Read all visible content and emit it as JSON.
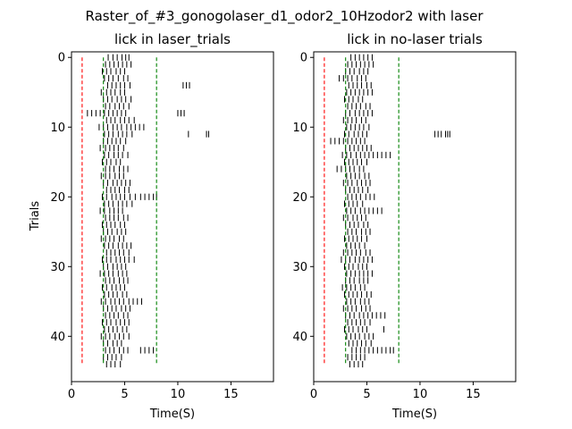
{
  "figure": {
    "suptitle": "Raster_of_#3_gonogolaser_d1_odor2_10Hzodor2 with laser"
  },
  "chart_data": [
    {
      "type": "scatter",
      "marker": "vertical-tick",
      "title": "lick in laser_trials",
      "xlabel": "Time(S)",
      "ylabel": "Trials",
      "xlim": [
        0,
        19
      ],
      "ylim": [
        46.5,
        -0.8
      ],
      "x_ticks": [
        0,
        5,
        10,
        15
      ],
      "y_ticks": [
        0,
        10,
        20,
        30,
        40
      ],
      "ylabel_shown": true,
      "grid": false,
      "colors": {
        "ticks": "#000000",
        "odor_line": "#ff0000",
        "window_line": "#008000"
      },
      "reference_lines": [
        {
          "x": 1.0,
          "color": "#ff0000",
          "style": "dashed",
          "y_range": [
            0,
            44
          ]
        },
        {
          "x": 3.0,
          "color": "#008000",
          "style": "dashed",
          "y_range": [
            0,
            44
          ]
        },
        {
          "x": 8.0,
          "color": "#008000",
          "style": "dashed",
          "y_range": [
            0,
            44
          ]
        }
      ],
      "trials": [
        [
          3.45,
          3.9,
          4.3,
          4.75,
          5.1,
          5.4
        ],
        [
          3.2,
          3.6,
          4.0,
          4.4,
          4.8,
          5.2,
          5.6
        ],
        [
          2.9,
          3.3,
          3.7,
          4.2,
          4.6,
          5.0
        ],
        [
          3.1,
          3.5,
          3.9,
          4.4,
          4.9,
          5.3
        ],
        [
          3.4,
          3.8,
          4.2,
          4.6,
          5.0,
          5.5,
          10.5,
          10.8,
          11.1
        ],
        [
          2.8,
          3.3,
          3.7,
          4.1,
          4.6,
          5.0
        ],
        [
          3.0,
          3.4,
          3.8,
          4.3,
          4.7,
          5.1,
          5.6
        ],
        [
          3.2,
          3.6,
          4.1,
          4.5,
          4.9,
          5.4
        ],
        [
          1.5,
          1.9,
          2.3,
          2.7,
          3.1,
          3.5,
          3.9,
          4.3,
          4.7,
          5.1,
          10.0,
          10.3,
          10.6
        ],
        [
          3.3,
          3.7,
          4.1,
          4.6,
          5.0,
          5.4,
          5.9
        ],
        [
          2.6,
          3.0,
          3.4,
          3.9,
          4.3,
          4.7,
          5.2,
          5.6,
          6.0,
          6.4,
          6.8
        ],
        [
          3.1,
          3.5,
          3.9,
          4.4,
          4.8,
          5.2,
          5.7,
          11.0,
          12.7,
          12.9
        ],
        [
          3.0,
          3.4,
          3.8,
          4.2,
          4.6,
          5.1
        ],
        [
          2.7,
          3.2,
          3.6,
          4.0,
          4.4,
          4.9
        ],
        [
          3.1,
          3.5,
          4.0,
          4.4,
          4.8,
          5.3
        ],
        [
          2.9,
          3.3,
          3.7,
          4.2,
          4.6
        ],
        [
          3.2,
          3.6,
          4.0,
          4.5,
          4.9,
          5.3
        ],
        [
          2.8,
          3.2,
          3.6,
          4.1,
          4.5,
          4.9
        ],
        [
          3.0,
          3.4,
          3.9,
          4.3,
          4.7,
          5.1,
          5.5
        ],
        [
          3.3,
          3.7,
          4.1,
          4.5,
          5.0,
          5.4
        ],
        [
          2.9,
          3.3,
          3.8,
          4.2,
          4.6,
          5.0,
          5.5,
          6.0,
          6.5,
          6.9,
          7.3,
          7.7,
          8.0
        ],
        [
          3.1,
          3.5,
          3.9,
          4.4,
          4.8,
          5.2,
          5.7
        ],
        [
          2.7,
          3.1,
          3.6,
          4.0,
          4.4,
          4.8
        ],
        [
          3.2,
          3.6,
          4.0,
          4.4,
          4.9,
          5.3
        ],
        [
          2.9,
          3.3,
          3.7,
          4.1,
          4.6,
          5.0
        ],
        [
          3.0,
          3.4,
          3.8,
          4.3,
          4.7,
          5.1
        ],
        [
          2.8,
          3.2,
          3.6,
          4.0,
          4.5,
          4.9
        ],
        [
          3.1,
          3.5,
          3.9,
          4.4,
          4.8,
          5.2,
          5.6
        ],
        [
          3.3,
          3.7,
          4.1,
          4.5,
          4.9,
          5.4
        ],
        [
          2.9,
          3.3,
          3.7,
          4.2,
          4.6,
          5.0,
          5.4,
          5.9
        ],
        [
          3.0,
          3.4,
          3.9,
          4.3,
          4.7,
          5.1
        ],
        [
          2.7,
          3.1,
          3.5,
          3.9,
          4.4,
          4.8,
          5.2
        ],
        [
          3.2,
          3.6,
          4.0,
          4.5,
          4.9,
          5.3
        ],
        [
          2.9,
          3.3,
          3.8,
          4.2,
          4.6,
          5.0
        ],
        [
          3.1,
          3.5,
          3.9,
          4.3,
          4.8,
          5.2
        ],
        [
          2.8,
          3.2,
          3.7,
          4.1,
          4.5,
          4.9,
          5.4,
          5.8,
          6.2,
          6.6
        ],
        [
          3.0,
          3.4,
          3.8,
          4.2,
          4.7,
          5.1,
          5.5
        ],
        [
          3.2,
          3.6,
          4.0,
          4.4,
          4.9,
          5.3
        ],
        [
          2.9,
          3.3,
          3.7,
          4.2,
          4.6,
          5.0,
          5.4
        ],
        [
          3.1,
          3.5,
          3.9,
          4.3,
          4.8,
          5.2
        ],
        [
          2.8,
          3.2,
          3.6,
          4.1,
          4.5,
          4.9,
          5.4
        ],
        [
          3.0,
          3.4,
          3.9,
          4.3,
          4.7
        ],
        [
          3.2,
          3.6,
          4.0,
          4.5,
          4.9,
          5.3,
          6.5,
          6.9,
          7.3,
          7.7
        ],
        [
          3.0,
          3.4,
          3.8,
          4.2,
          4.7
        ],
        [
          3.3,
          3.7,
          4.1,
          4.6
        ]
      ]
    },
    {
      "type": "scatter",
      "marker": "vertical-tick",
      "title": "lick in no-laser trials",
      "xlabel": "Time(S)",
      "ylabel": "",
      "xlim": [
        0,
        19
      ],
      "ylim": [
        46.5,
        -0.8
      ],
      "x_ticks": [
        0,
        5,
        10,
        15
      ],
      "y_ticks": [
        0,
        10,
        20,
        30,
        40
      ],
      "ylabel_shown": false,
      "grid": false,
      "colors": {
        "ticks": "#000000",
        "odor_line": "#ff0000",
        "window_line": "#008000"
      },
      "reference_lines": [
        {
          "x": 1.0,
          "color": "#ff0000",
          "style": "dashed",
          "y_range": [
            0,
            44
          ]
        },
        {
          "x": 3.0,
          "color": "#008000",
          "style": "dashed",
          "y_range": [
            0,
            44
          ]
        },
        {
          "x": 8.0,
          "color": "#008000",
          "style": "dashed",
          "y_range": [
            0,
            44
          ]
        }
      ],
      "trials": [
        [
          3.5,
          3.9,
          4.3,
          4.7,
          5.1,
          5.5
        ],
        [
          3.2,
          3.6,
          4.0,
          4.4,
          4.8,
          5.2,
          5.6
        ],
        [
          3.0,
          3.4,
          3.8,
          4.3,
          4.7,
          5.1
        ],
        [
          2.4,
          2.8,
          3.2,
          3.6,
          4.1,
          4.5,
          4.9
        ],
        [
          3.3,
          3.7,
          4.1,
          4.5,
          5.0,
          5.4
        ],
        [
          3.1,
          3.5,
          3.9,
          4.3,
          4.7,
          5.1,
          5.5
        ],
        [
          2.9,
          3.3,
          3.7,
          4.2,
          4.6
        ],
        [
          3.2,
          3.6,
          4.0,
          4.4,
          4.9,
          5.3
        ],
        [
          3.0,
          3.4,
          3.9,
          4.3,
          4.7,
          5.1,
          5.5
        ],
        [
          2.8,
          3.2,
          3.6,
          4.0,
          4.5,
          4.9
        ],
        [
          3.1,
          3.5,
          3.9,
          4.3,
          4.7,
          5.2
        ],
        [
          2.9,
          3.3,
          3.8,
          4.2,
          4.6,
          5.0,
          11.4,
          11.7,
          12.0,
          12.4,
          12.6,
          12.8
        ],
        [
          1.6,
          2.0,
          2.4,
          2.8,
          3.2,
          3.6,
          4.0,
          4.4,
          4.8
        ],
        [
          3.0,
          3.4,
          3.8,
          4.2,
          4.6,
          5.0,
          5.4
        ],
        [
          2.7,
          3.1,
          3.5,
          4.0,
          4.4,
          4.8,
          5.2,
          5.6,
          6.0,
          6.4,
          6.8,
          7.2
        ],
        [
          2.9,
          3.3,
          3.7,
          4.1,
          4.5,
          5.0
        ],
        [
          2.2,
          2.6,
          3.0,
          3.4,
          3.8,
          4.3,
          4.7
        ],
        [
          3.1,
          3.5,
          3.9,
          4.3,
          4.8,
          5.2
        ],
        [
          2.8,
          3.2,
          3.6,
          4.1,
          4.5,
          4.9,
          5.3
        ],
        [
          3.0,
          3.4,
          3.8,
          4.2,
          4.6,
          5.1
        ],
        [
          3.2,
          3.6,
          4.0,
          4.4,
          4.9,
          5.3,
          5.7
        ],
        [
          2.9,
          3.3,
          3.7,
          4.1,
          4.6
        ],
        [
          3.1,
          3.5,
          3.9,
          4.4,
          4.8,
          5.2,
          5.6,
          6.0,
          6.4
        ],
        [
          2.8,
          3.2,
          3.7,
          4.1,
          4.5,
          4.9
        ],
        [
          3.0,
          3.4,
          3.8,
          4.2,
          4.7,
          5.1
        ],
        [
          3.2,
          3.6,
          4.0,
          4.5,
          4.9,
          5.3
        ],
        [
          2.9,
          3.3,
          3.7,
          4.1,
          4.5,
          5.0
        ],
        [
          3.1,
          3.5,
          3.9,
          4.3,
          4.8
        ],
        [
          2.8,
          3.2,
          3.6,
          4.0,
          4.4,
          4.9,
          5.3
        ],
        [
          2.6,
          3.0,
          3.4,
          3.9,
          4.3,
          4.7,
          5.1,
          5.5
        ],
        [
          2.9,
          3.3,
          3.7,
          4.2,
          4.6,
          5.0
        ],
        [
          3.1,
          3.5,
          3.9,
          4.3,
          4.7,
          5.1,
          5.5
        ],
        [
          3.0,
          3.4,
          3.8,
          4.3,
          4.7,
          5.1
        ],
        [
          2.7,
          3.1,
          3.5,
          3.9,
          4.4,
          4.8
        ],
        [
          2.9,
          3.3,
          3.7,
          4.1,
          4.5,
          5.0,
          5.4
        ],
        [
          3.1,
          3.5,
          3.9,
          4.4,
          4.8,
          5.2
        ],
        [
          2.8,
          3.2,
          3.6,
          4.0,
          4.5,
          4.9,
          5.3
        ],
        [
          3.0,
          3.4,
          3.8,
          4.3,
          4.7,
          5.1,
          5.5,
          5.9,
          6.3,
          6.7
        ],
        [
          3.2,
          3.6,
          4.0,
          4.4,
          4.8,
          5.3
        ],
        [
          2.9,
          3.3,
          3.7,
          4.2,
          4.6,
          5.0,
          6.6
        ],
        [
          3.1,
          3.5,
          3.9,
          4.3,
          4.8,
          5.2,
          5.6
        ],
        [
          3.3,
          3.7,
          4.1,
          4.5,
          4.9,
          5.4
        ],
        [
          3.6,
          4.0,
          4.4,
          4.8,
          5.2,
          5.6,
          6.0,
          6.4,
          6.8,
          7.2,
          7.5
        ],
        [
          3.2,
          3.6,
          4.0,
          4.4,
          4.8
        ],
        [
          3.4,
          3.8,
          4.2,
          4.6
        ]
      ]
    }
  ]
}
